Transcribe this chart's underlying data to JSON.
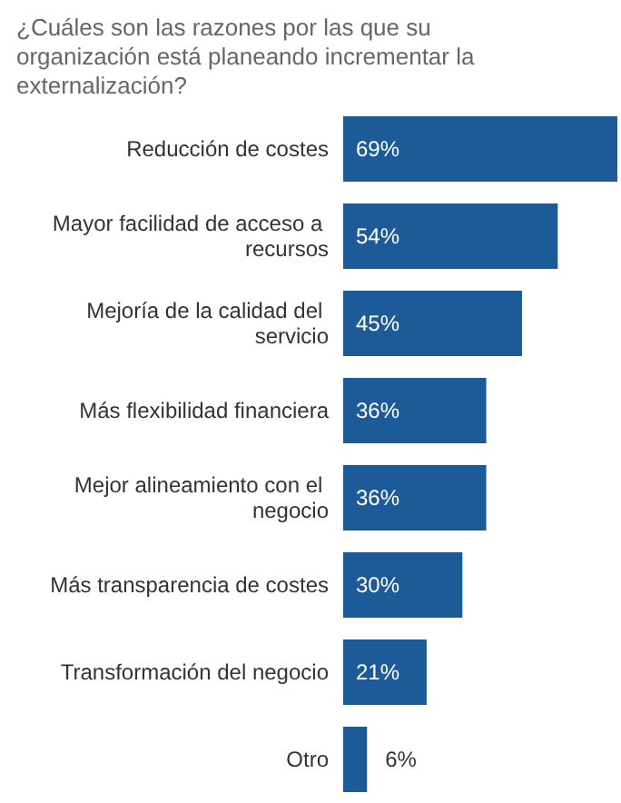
{
  "chart_data": {
    "type": "bar",
    "orientation": "horizontal",
    "title": "¿Cuáles son las razones por las que su organización está planeando incrementar la externalización?",
    "categories": [
      "Reducción de costes",
      "Mayor facilidad de acceso a recursos",
      "Mejoría de la calidad del servicio",
      "Más flexibilidad financiera",
      "Mejor alineamiento con el negocio",
      "Más transparencia de costes",
      "Transformación del negocio",
      "Otro"
    ],
    "values": [
      69,
      54,
      45,
      36,
      36,
      30,
      21,
      6
    ],
    "value_labels": [
      "69%",
      "54%",
      "45%",
      "36%",
      "36%",
      "30%",
      "21%",
      "6%"
    ],
    "color": "#1d5b98"
  }
}
